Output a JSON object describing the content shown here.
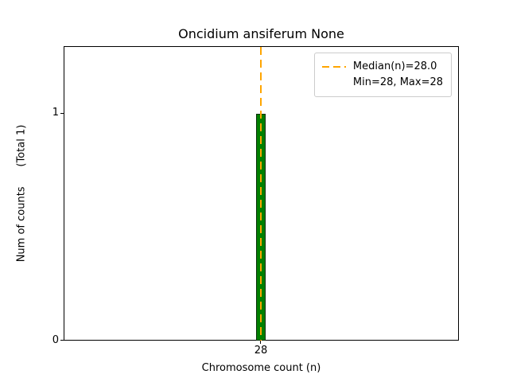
{
  "title": "Oncidium ansiferum None",
  "axes": {
    "xlabel": "Chromosome count (n)",
    "ylabel": "Num of counts      (Total 1)",
    "yticks": [
      "1",
      "0"
    ],
    "xticks": [
      "28"
    ]
  },
  "legend": {
    "items": [
      {
        "label": "Median(n)=28.0",
        "marker": "orange-dashed-line"
      },
      {
        "label": "Min=28, Max=28",
        "marker": "none"
      }
    ]
  },
  "colors": {
    "bar_fill": "#008000",
    "bar_edge": "#0a2e0a",
    "median_line": "#ffa500",
    "axes_border": "#000000"
  },
  "chart_data": {
    "type": "bar",
    "title": "Oncidium ansiferum None",
    "xlabel": "Chromosome count (n)",
    "ylabel": "Num of counts (Total 1)",
    "categories": [
      28
    ],
    "values": [
      1
    ],
    "total_counts": 1,
    "median": 28.0,
    "min": 28,
    "max": 28,
    "ylim": [
      0,
      1.3
    ],
    "xticks": [
      28
    ],
    "yticks": [
      0,
      1
    ],
    "grid": false,
    "legend_position": "upper right",
    "series": [
      {
        "name": "counts",
        "values": [
          1
        ],
        "color": "#008000"
      }
    ],
    "annotations": [
      {
        "type": "vline",
        "x": 28,
        "style": "dashed",
        "color": "#ffa500",
        "label": "Median(n)=28.0"
      }
    ]
  }
}
